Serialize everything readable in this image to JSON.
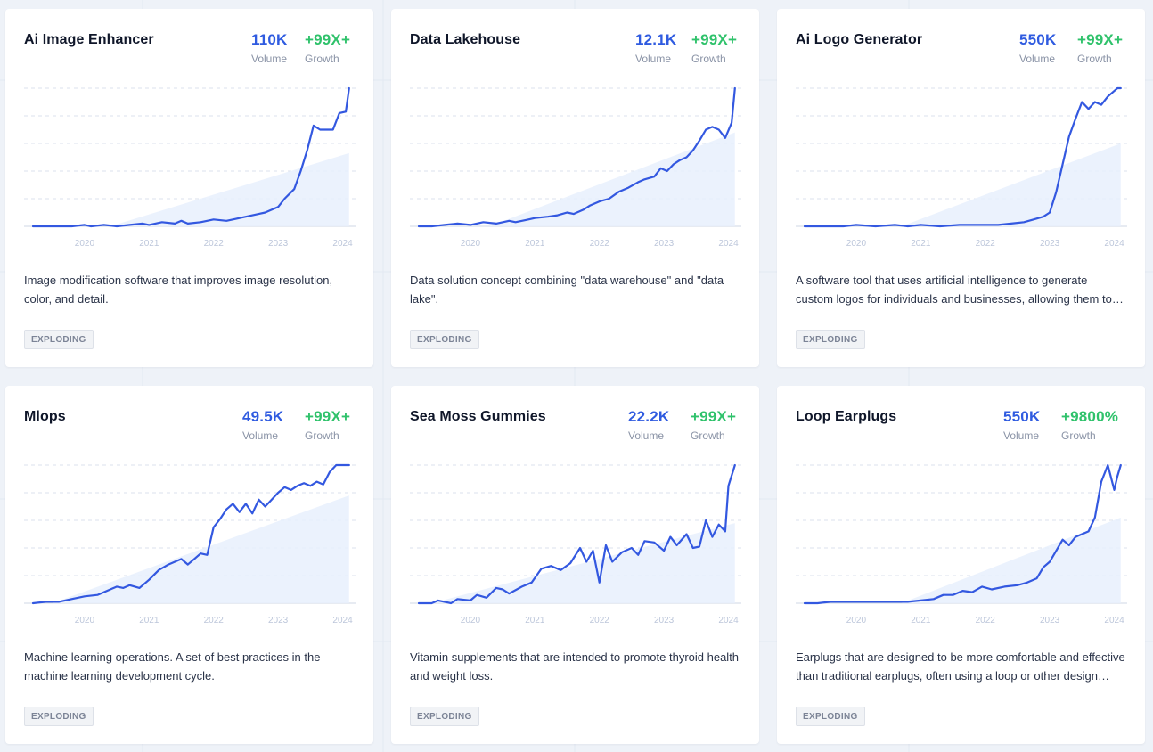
{
  "colors": {
    "volume": "#2f5be0",
    "growth": "#2fc26b",
    "line": "#3358e0",
    "area": "#e8f0fd"
  },
  "year_labels": [
    "2020",
    "2021",
    "2022",
    "2023",
    "2024"
  ],
  "volume_label": "Volume",
  "growth_label": "Growth",
  "cards": [
    {
      "title": "Ai Image Enhancer",
      "volume": "110K",
      "growth": "+99X+",
      "description": "Image modification software that improves image resolution, color, and detail.",
      "badge": "EXPLODING"
    },
    {
      "title": "Data Lakehouse",
      "volume": "12.1K",
      "growth": "+99X+",
      "description": "Data solution concept combining \"data warehouse\" and \"data lake\".",
      "badge": "EXPLODING"
    },
    {
      "title": "Ai Logo Generator",
      "volume": "550K",
      "growth": "+99X+",
      "description": "A software tool that uses artificial intelligence to generate custom logos for individuals and businesses, allowing them to create professional designs quickly.",
      "badge": "EXPLODING"
    },
    {
      "title": "Mlops",
      "volume": "49.5K",
      "growth": "+99X+",
      "description": "Machine learning operations. A set of best practices in the machine learning development cycle.",
      "badge": "EXPLODING"
    },
    {
      "title": "Sea Moss Gummies",
      "volume": "22.2K",
      "growth": "+99X+",
      "description": "Vitamin supplements that are intended to promote thyroid health and weight loss.",
      "badge": "EXPLODING"
    },
    {
      "title": "Loop Earplugs",
      "volume": "550K",
      "growth": "+9800%",
      "description": "Earplugs that are designed to be more comfortable and effective than traditional earplugs, often using a loop or other design features.",
      "badge": "EXPLODING"
    }
  ],
  "chart_data": [
    {
      "type": "line",
      "title": "Ai Image Enhancer",
      "ylim": [
        0,
        100
      ],
      "x_range": [
        2019.2,
        2024.2
      ],
      "trend_area": {
        "from": [
          2020.4,
          0
        ],
        "to": [
          2024.1,
          53
        ]
      },
      "x": [
        2019.2,
        2019.4,
        2019.6,
        2019.8,
        2020.0,
        2020.1,
        2020.3,
        2020.5,
        2020.7,
        2020.9,
        2021.0,
        2021.2,
        2021.4,
        2021.5,
        2021.6,
        2021.8,
        2021.9,
        2022.0,
        2022.2,
        2022.3,
        2022.5,
        2022.7,
        2022.8,
        2023.0,
        2023.1,
        2023.25,
        2023.35,
        2023.45,
        2023.55,
        2023.65,
        2023.75,
        2023.85,
        2023.95,
        2024.05,
        2024.1
      ],
      "y": [
        0,
        0,
        0,
        0,
        1,
        0,
        1,
        0,
        1,
        2,
        1,
        3,
        2,
        4,
        2,
        3,
        4,
        5,
        4,
        5,
        7,
        9,
        10,
        14,
        20,
        27,
        40,
        55,
        73,
        70,
        70,
        70,
        82,
        83,
        100
      ]
    },
    {
      "type": "line",
      "title": "Data Lakehouse",
      "ylim": [
        0,
        100
      ],
      "x_range": [
        2019.2,
        2024.2
      ],
      "trend_area": {
        "from": [
          2020.3,
          0
        ],
        "to": [
          2024.1,
          68
        ]
      },
      "x": [
        2019.2,
        2019.4,
        2019.6,
        2019.8,
        2020.0,
        2020.2,
        2020.4,
        2020.6,
        2020.7,
        2020.9,
        2021.0,
        2021.2,
        2021.35,
        2021.5,
        2021.6,
        2021.75,
        2021.85,
        2022.0,
        2022.15,
        2022.3,
        2022.45,
        2022.6,
        2022.7,
        2022.85,
        2022.95,
        2023.05,
        2023.15,
        2023.25,
        2023.35,
        2023.45,
        2023.55,
        2023.65,
        2023.75,
        2023.85,
        2023.95,
        2024.05,
        2024.1
      ],
      "y": [
        0,
        0,
        1,
        2,
        1,
        3,
        2,
        4,
        3,
        5,
        6,
        7,
        8,
        10,
        9,
        12,
        15,
        18,
        20,
        25,
        28,
        32,
        34,
        36,
        42,
        40,
        45,
        48,
        50,
        55,
        62,
        70,
        72,
        70,
        64,
        75,
        100
      ]
    },
    {
      "type": "line",
      "title": "Ai Logo Generator",
      "ylim": [
        0,
        100
      ],
      "x_range": [
        2019.2,
        2024.2
      ],
      "trend_area": {
        "from": [
          2020.7,
          0
        ],
        "to": [
          2024.1,
          60
        ]
      },
      "x": [
        2019.2,
        2019.5,
        2019.8,
        2020.0,
        2020.3,
        2020.6,
        2020.8,
        2021.0,
        2021.3,
        2021.6,
        2021.8,
        2022.0,
        2022.2,
        2022.4,
        2022.6,
        2022.75,
        2022.9,
        2023.0,
        2023.1,
        2023.2,
        2023.3,
        2023.4,
        2023.5,
        2023.6,
        2023.7,
        2023.8,
        2023.9,
        2024.0,
        2024.05,
        2024.1
      ],
      "y": [
        0,
        0,
        0,
        1,
        0,
        1,
        0,
        1,
        0,
        1,
        1,
        1,
        1,
        2,
        3,
        5,
        7,
        10,
        25,
        45,
        65,
        78,
        90,
        85,
        90,
        88,
        94,
        98,
        100,
        100
      ]
    },
    {
      "type": "line",
      "title": "Mlops",
      "ylim": [
        0,
        100
      ],
      "x_range": [
        2019.2,
        2024.2
      ],
      "trend_area": {
        "from": [
          2019.5,
          0
        ],
        "to": [
          2024.1,
          78
        ]
      },
      "x": [
        2019.2,
        2019.4,
        2019.6,
        2019.8,
        2020.0,
        2020.2,
        2020.3,
        2020.5,
        2020.6,
        2020.7,
        2020.85,
        2021.0,
        2021.15,
        2021.3,
        2021.5,
        2021.6,
        2021.7,
        2021.8,
        2021.9,
        2022.0,
        2022.1,
        2022.2,
        2022.3,
        2022.4,
        2022.5,
        2022.6,
        2022.7,
        2022.8,
        2022.9,
        2023.0,
        2023.1,
        2023.2,
        2023.3,
        2023.4,
        2023.5,
        2023.6,
        2023.7,
        2023.8,
        2023.9,
        2024.0,
        2024.1
      ],
      "y": [
        0,
        1,
        1,
        3,
        5,
        6,
        8,
        12,
        11,
        13,
        11,
        17,
        24,
        28,
        32,
        28,
        32,
        36,
        35,
        55,
        61,
        68,
        72,
        66,
        72,
        65,
        75,
        70,
        75,
        80,
        84,
        82,
        85,
        87,
        85,
        88,
        86,
        95,
        100,
        100,
        100
      ]
    },
    {
      "type": "line",
      "title": "Sea Moss Gummies",
      "ylim": [
        0,
        100
      ],
      "x_range": [
        2019.2,
        2024.2
      ],
      "trend_area": {
        "from": [
          2019.4,
          0
        ],
        "to": [
          2024.1,
          58
        ]
      },
      "x": [
        2019.2,
        2019.4,
        2019.5,
        2019.7,
        2019.8,
        2020.0,
        2020.1,
        2020.25,
        2020.4,
        2020.5,
        2020.6,
        2020.8,
        2020.95,
        2021.1,
        2021.25,
        2021.4,
        2021.55,
        2021.7,
        2021.8,
        2021.9,
        2022.0,
        2022.1,
        2022.2,
        2022.35,
        2022.5,
        2022.6,
        2022.7,
        2022.85,
        2023.0,
        2023.1,
        2023.2,
        2023.35,
        2023.45,
        2023.55,
        2023.65,
        2023.75,
        2023.85,
        2023.95,
        2024.0,
        2024.1
      ],
      "y": [
        0,
        0,
        2,
        0,
        3,
        2,
        6,
        4,
        11,
        10,
        7,
        12,
        15,
        25,
        27,
        24,
        29,
        40,
        30,
        38,
        15,
        42,
        30,
        37,
        40,
        35,
        45,
        44,
        38,
        48,
        42,
        50,
        40,
        41,
        60,
        48,
        57,
        52,
        85,
        100
      ]
    },
    {
      "type": "line",
      "title": "Loop Earplugs",
      "ylim": [
        0,
        100
      ],
      "x_range": [
        2019.2,
        2024.2
      ],
      "trend_area": {
        "from": [
          2020.7,
          0
        ],
        "to": [
          2024.1,
          62
        ]
      },
      "x": [
        2019.2,
        2019.4,
        2019.6,
        2019.8,
        2020.0,
        2020.3,
        2020.6,
        2020.8,
        2021.0,
        2021.2,
        2021.35,
        2021.5,
        2021.65,
        2021.8,
        2021.95,
        2022.1,
        2022.3,
        2022.5,
        2022.65,
        2022.8,
        2022.9,
        2023.0,
        2023.1,
        2023.2,
        2023.3,
        2023.4,
        2023.5,
        2023.6,
        2023.7,
        2023.8,
        2023.9,
        2024.0,
        2024.05,
        2024.1
      ],
      "y": [
        0,
        0,
        1,
        1,
        1,
        1,
        1,
        1,
        2,
        3,
        6,
        6,
        9,
        8,
        12,
        10,
        12,
        13,
        15,
        18,
        26,
        30,
        38,
        46,
        42,
        48,
        50,
        52,
        62,
        88,
        100,
        82,
        92,
        100
      ]
    }
  ]
}
